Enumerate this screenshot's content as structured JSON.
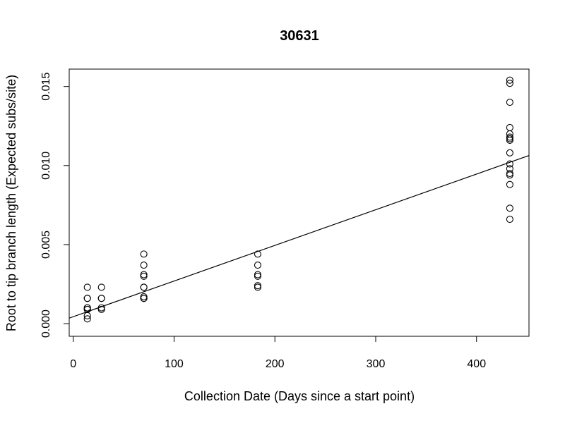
{
  "chart_data": {
    "type": "scatter",
    "title": "30631",
    "xlabel": "Collection Date (Days since a start point)",
    "ylabel": "Root to tip branch length (Expected subs/site)",
    "xlim": [
      -4,
      452
    ],
    "ylim": [
      -0.0008,
      0.0161
    ],
    "xticks": [
      0,
      100,
      200,
      300,
      400
    ],
    "xtick_labels": [
      "0",
      "100",
      "200",
      "300",
      "400"
    ],
    "yticks": [
      0.0,
      0.005,
      0.01,
      0.015
    ],
    "ytick_labels": [
      "0.000",
      "0.005",
      "0.010",
      "0.015"
    ],
    "grid": false,
    "legend": false,
    "points": [
      [
        14,
        0.0023
      ],
      [
        14,
        0.0016
      ],
      [
        14,
        0.0016
      ],
      [
        14,
        0.001
      ],
      [
        14,
        0.001
      ],
      [
        14,
        0.0009
      ],
      [
        14,
        0.0009
      ],
      [
        14,
        0.0005
      ],
      [
        14,
        0.0003
      ],
      [
        28,
        0.0023
      ],
      [
        28,
        0.0016
      ],
      [
        28,
        0.0016
      ],
      [
        28,
        0.001
      ],
      [
        28,
        0.0009
      ],
      [
        70,
        0.0044
      ],
      [
        70,
        0.0037
      ],
      [
        70,
        0.0031
      ],
      [
        70,
        0.003
      ],
      [
        70,
        0.0023
      ],
      [
        70,
        0.0023
      ],
      [
        70,
        0.0017
      ],
      [
        70,
        0.0016
      ],
      [
        70,
        0.0016
      ],
      [
        183,
        0.0044
      ],
      [
        183,
        0.0037
      ],
      [
        183,
        0.0031
      ],
      [
        183,
        0.003
      ],
      [
        183,
        0.0024
      ],
      [
        183,
        0.0023
      ],
      [
        433,
        0.0154
      ],
      [
        433,
        0.0152
      ],
      [
        433,
        0.014
      ],
      [
        433,
        0.0124
      ],
      [
        433,
        0.012
      ],
      [
        433,
        0.0118
      ],
      [
        433,
        0.0117
      ],
      [
        433,
        0.0116
      ],
      [
        433,
        0.0108
      ],
      [
        433,
        0.0101
      ],
      [
        433,
        0.0098
      ],
      [
        433,
        0.0095
      ],
      [
        433,
        0.0094
      ],
      [
        433,
        0.0088
      ],
      [
        433,
        0.0073
      ],
      [
        433,
        0.0066
      ]
    ],
    "regression_line": {
      "intercept": 0.00044,
      "slope": 2.255e-05
    }
  }
}
